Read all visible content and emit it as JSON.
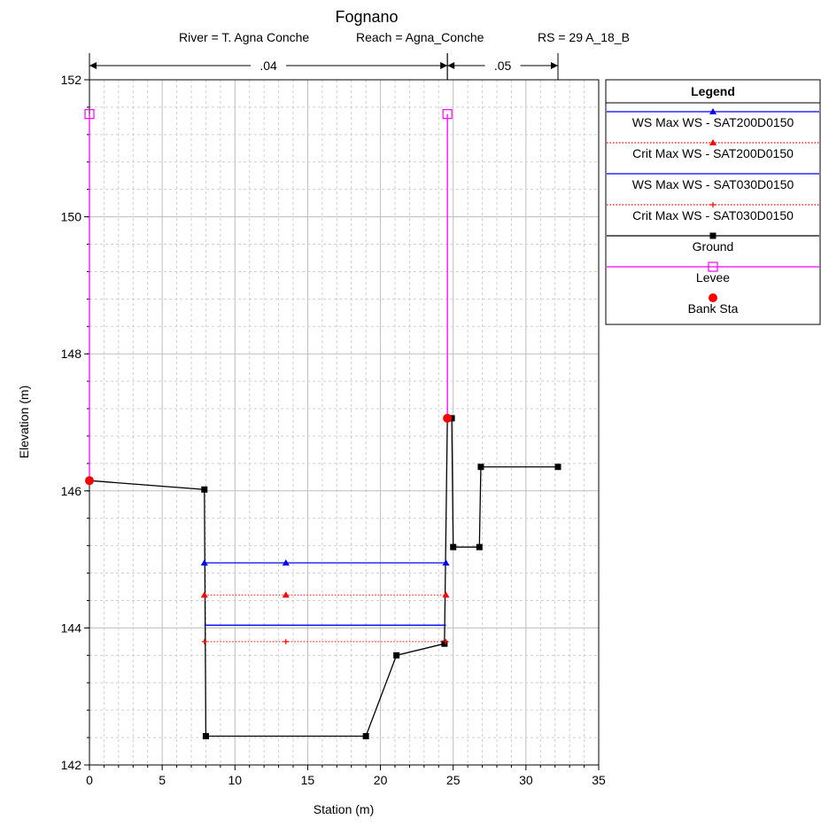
{
  "chart_data": {
    "type": "line",
    "title": "Fognano",
    "subtitle_parts": [
      "River = T. Agna Conche",
      "Reach = Agna_Conche",
      "RS = 29  A_18_B"
    ],
    "xlabel": "Station (m)",
    "ylabel": "Elevation (m)",
    "xlim": [
      0,
      35
    ],
    "ylim": [
      142,
      152
    ],
    "x_ticks": [
      0,
      5,
      10,
      15,
      20,
      25,
      30,
      35
    ],
    "y_ticks": [
      142,
      144,
      146,
      148,
      150,
      152
    ],
    "grid": true,
    "legend_position": "right",
    "manning": [
      {
        "label": ".04",
        "x_start": 0,
        "x_end": 24.6
      },
      {
        "label": ".05",
        "x_start": 24.6,
        "x_end": 32.2
      }
    ],
    "series": [
      {
        "name": "WS Max WS - SAT200D0150",
        "color": "#0000ff",
        "line": "solid",
        "marker": "triangle",
        "x": [
          7.9,
          24.5
        ],
        "y": [
          144.95,
          144.95
        ],
        "markers_x": [
          7.9,
          13.5,
          24.5
        ]
      },
      {
        "name": "Crit Max WS - SAT200D0150",
        "color": "#ff0000",
        "line": "dotted",
        "marker": "triangle",
        "x": [
          7.9,
          24.5
        ],
        "y": [
          144.48,
          144.48
        ],
        "markers_x": [
          7.9,
          13.5,
          24.5
        ]
      },
      {
        "name": "WS Max WS - SAT030D0150",
        "color": "#0000ff",
        "line": "solid",
        "marker": "none",
        "x": [
          7.9,
          24.5
        ],
        "y": [
          144.04,
          144.04
        ],
        "markers_x": []
      },
      {
        "name": "Crit Max WS - SAT030D0150",
        "color": "#ff0000",
        "line": "dotted",
        "marker": "plus",
        "x": [
          7.9,
          24.5
        ],
        "y": [
          143.8,
          143.8
        ],
        "markers_x": [
          7.9,
          13.5,
          24.5
        ]
      },
      {
        "name": "Ground",
        "color": "#000000",
        "line": "solid",
        "marker": "square",
        "x": [
          0,
          7.9,
          8.0,
          19.0,
          21.1,
          24.4,
          24.6,
          24.9,
          25.0,
          26.8,
          26.9,
          32.2
        ],
        "y": [
          146.15,
          146.02,
          142.42,
          142.42,
          143.6,
          143.77,
          147.06,
          147.06,
          145.18,
          145.18,
          146.35,
          146.35
        ]
      },
      {
        "name": "Levee",
        "color": "#ff00ff",
        "line": "solid",
        "marker": "open-square",
        "segments": [
          {
            "x": [
              0,
              0
            ],
            "y": [
              146.15,
              151.5
            ]
          },
          {
            "x": [
              24.6,
              24.6
            ],
            "y": [
              147.06,
              151.5
            ]
          }
        ]
      },
      {
        "name": "Bank Sta",
        "color": "#ff0000",
        "line": "none",
        "marker": "circle",
        "x": [
          0,
          24.6
        ],
        "y": [
          146.15,
          147.06
        ]
      }
    ]
  }
}
